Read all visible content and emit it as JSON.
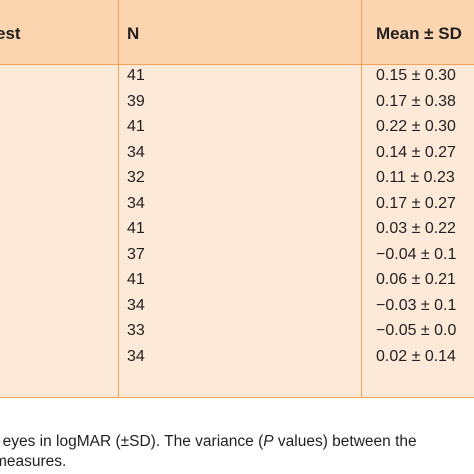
{
  "table": {
    "headers": {
      "test": "est",
      "n": "N",
      "mean": "Mean ± SD"
    },
    "rows": [
      {
        "n": "41",
        "mean": "0.15 ± 0.30"
      },
      {
        "n": "39",
        "mean": "0.17 ± 0.38"
      },
      {
        "n": "41",
        "mean": "0.22 ± 0.30"
      },
      {
        "n": "34",
        "mean": "0.14 ± 0.27"
      },
      {
        "n": "32",
        "mean": "0.11 ± 0.23"
      },
      {
        "n": "34",
        "mean": "0.17 ± 0.27"
      },
      {
        "n": "41",
        "mean": "0.03 ± 0.22"
      },
      {
        "n": "37",
        "mean": "−0.04 ± 0.1"
      },
      {
        "n": "41",
        "mean": "0.06 ± 0.21"
      },
      {
        "n": "34",
        "mean": "−0.03 ± 0.1"
      },
      {
        "n": "33",
        "mean": "−0.05 ± 0.0"
      },
      {
        "n": "34",
        "mean": "0.02 ± 0.14"
      }
    ]
  },
  "footnote": {
    "line1_pre": "t eyes in logMAR (±SD). The variance (",
    "line1_italic": "P",
    "line1_post": " values) between the",
    "line2": "measures."
  },
  "colors": {
    "header_bg": "#fbd4b0",
    "body_bg": "#fde9d7",
    "rule": "#f0a25a"
  }
}
